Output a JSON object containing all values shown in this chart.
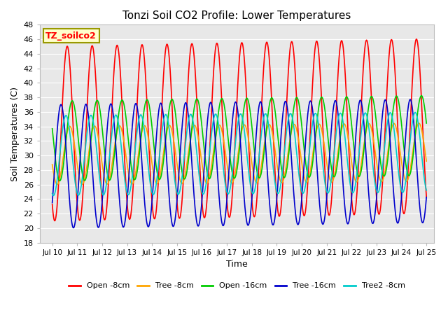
{
  "title": "Tonzi Soil CO2 Profile: Lower Temperatures",
  "xlabel": "Time",
  "ylabel": "Soil Temperatures (C)",
  "ylim": [
    18,
    48
  ],
  "xlim_start": 9.5,
  "xlim_end": 25.3,
  "xtick_positions": [
    10,
    11,
    12,
    13,
    14,
    15,
    16,
    17,
    18,
    19,
    20,
    21,
    22,
    23,
    24,
    25
  ],
  "xtick_labels": [
    "Jul 10",
    "Jul 11",
    "Jul 12",
    "Jul 13",
    "Jul 14",
    "Jul 15",
    "Jul 16",
    "Jul 17",
    "Jul 18",
    "Jul 19",
    "Jul 20",
    "Jul 21",
    "Jul 22",
    "Jul 23",
    "Jul 24",
    "Jul 25"
  ],
  "ytick_positions": [
    18,
    20,
    22,
    24,
    26,
    28,
    30,
    32,
    34,
    36,
    38,
    40,
    42,
    44,
    46,
    48
  ],
  "series": [
    {
      "label": "Open -8cm",
      "color": "#FF0000",
      "mean": 33.0,
      "amp": 12.0,
      "phase_shift": 0.35,
      "period": 1.0,
      "trend": 0.07
    },
    {
      "label": "Tree -8cm",
      "color": "#FFA500",
      "mean": 30.0,
      "amp": 4.0,
      "phase_shift": 0.45,
      "period": 1.0,
      "trend": 0.03
    },
    {
      "label": "Open -16cm",
      "color": "#00CC00",
      "mean": 32.0,
      "amp": 5.5,
      "phase_shift": 0.55,
      "period": 1.0,
      "trend": 0.05
    },
    {
      "label": "Tree -16cm",
      "color": "#0000CC",
      "mean": 28.5,
      "amp": 8.5,
      "phase_shift": 0.1,
      "period": 1.0,
      "trend": 0.05
    },
    {
      "label": "Tree2 -8cm",
      "color": "#00CCCC",
      "mean": 30.0,
      "amp": 5.5,
      "phase_shift": 0.3,
      "period": 1.0,
      "trend": 0.03
    }
  ],
  "background_color": "#E8E8E8",
  "grid_color": "#FFFFFF",
  "annotation_text": "TZ_soilco2",
  "annotation_bg": "#FFFFCC",
  "annotation_fc": "#FF0000",
  "annotation_ec": "#999900",
  "figsize": [
    6.4,
    4.8
  ],
  "dpi": 100
}
